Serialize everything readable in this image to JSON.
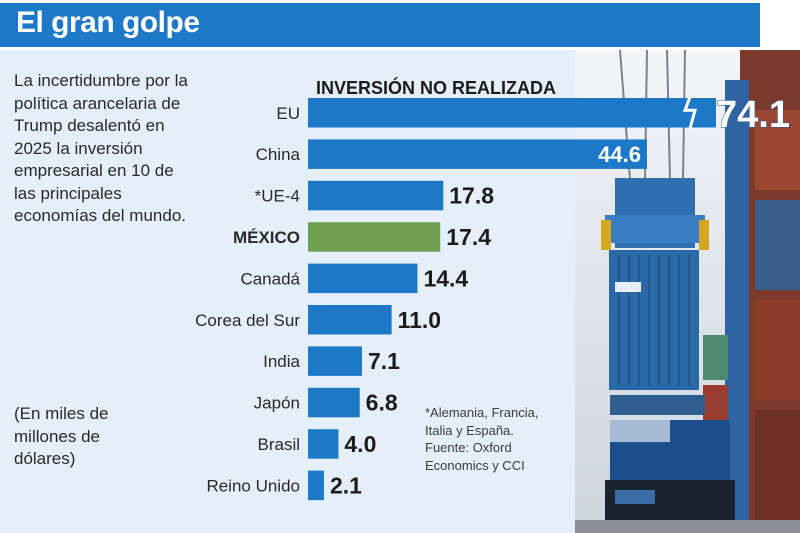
{
  "header": {
    "title": "El gran golpe"
  },
  "intro": {
    "text": "La incertidumbre por la política arancelaria de Trump desalentó en 2025 la inversión empresarial en 10 de las principales economías del mundo."
  },
  "units": {
    "text": "(En miles de millones de dólares)"
  },
  "note": {
    "lines": [
      "*Alemania, Francia,",
      "Italia y España.",
      "Fuente: Oxford",
      "Economics y CCI"
    ]
  },
  "colors": {
    "header": "#1d78c8",
    "bar": "#1d78c8",
    "highlight": "#6f9e4f",
    "panel": "#e4eff9"
  },
  "photo": {
    "icon": "port-container-crane-photo"
  },
  "chart_data": {
    "type": "bar",
    "orientation": "horizontal",
    "title": "INVERSIÓN NO REALIZADA",
    "categories": [
      "EU",
      "China",
      "*UE-4",
      "MÉXICO",
      "Canadá",
      "Corea del Sur",
      "India",
      "Japón",
      "Brasil",
      "Reino Unido"
    ],
    "values": [
      74.1,
      44.6,
      17.8,
      17.4,
      14.4,
      11.0,
      7.1,
      6.8,
      4.0,
      2.1
    ],
    "value_labels": [
      "74.1",
      "44.6",
      "17.8",
      "17.4",
      "14.4",
      "11.0",
      "7.1",
      "6.8",
      "4.0",
      "2.1"
    ],
    "highlight": "MÉXICO",
    "axis_break": "EU",
    "grid": false
  }
}
